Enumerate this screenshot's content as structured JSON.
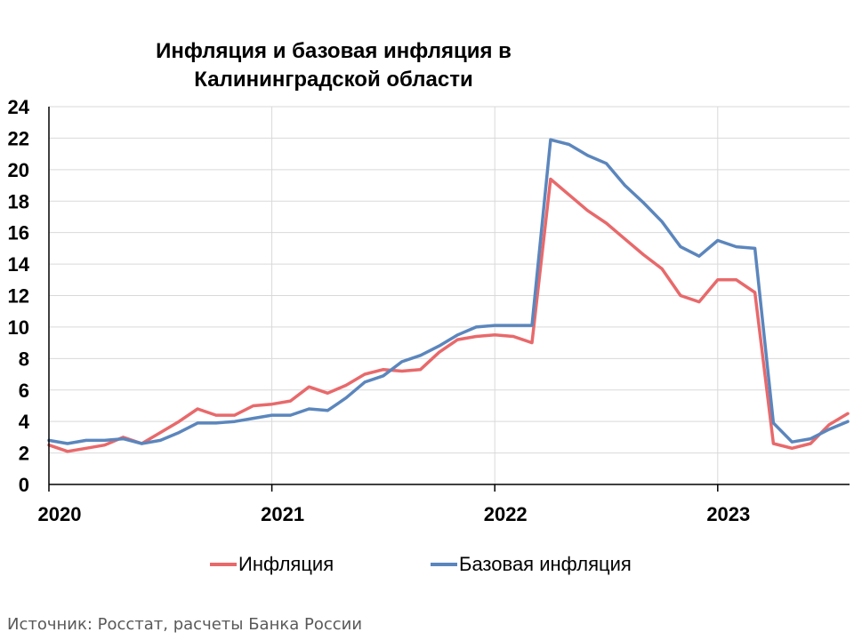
{
  "title": "Инфляция и базовая инфляция в Калининградской области",
  "source_note": "Источник: Росстат, расчеты Банка России",
  "chart_data": {
    "type": "line",
    "title": "Инфляция и базовая инфляция в Калининградской области",
    "xlabel": "",
    "ylabel": "",
    "x_tick_labels": [
      "2020",
      "2021",
      "2022",
      "2023"
    ],
    "y_ticks": [
      0,
      2,
      4,
      6,
      8,
      10,
      12,
      14,
      16,
      18,
      20,
      22,
      24
    ],
    "ylim": [
      0,
      24
    ],
    "x_start_month": "2020-01",
    "grid": "horizontal",
    "legend_position": "bottom",
    "series": [
      {
        "name": "Инфляция",
        "color": "#E8696B",
        "values": [
          2.5,
          2.1,
          2.3,
          2.5,
          3.0,
          2.6,
          3.3,
          4.0,
          4.8,
          4.4,
          4.4,
          5.0,
          5.1,
          5.3,
          6.2,
          5.8,
          6.3,
          7.0,
          7.3,
          7.2,
          7.3,
          8.4,
          9.2,
          9.4,
          9.5,
          9.4,
          9.0,
          19.4,
          18.4,
          17.4,
          16.6,
          15.6,
          14.6,
          13.7,
          12.0,
          11.6,
          13.0,
          13.0,
          12.2,
          2.6,
          2.3,
          2.6,
          3.8,
          4.5
        ]
      },
      {
        "name": "Базовая инфляция",
        "color": "#5B86BD",
        "values": [
          2.8,
          2.6,
          2.8,
          2.8,
          2.9,
          2.6,
          2.8,
          3.3,
          3.9,
          3.9,
          4.0,
          4.2,
          4.4,
          4.4,
          4.8,
          4.7,
          5.5,
          6.5,
          6.9,
          7.8,
          8.2,
          8.8,
          9.5,
          10.0,
          10.1,
          10.1,
          10.1,
          21.9,
          21.6,
          20.9,
          20.4,
          19.0,
          17.9,
          16.7,
          15.1,
          14.5,
          15.5,
          15.1,
          15.0,
          3.9,
          2.7,
          2.9,
          3.5,
          4.0
        ]
      }
    ]
  }
}
